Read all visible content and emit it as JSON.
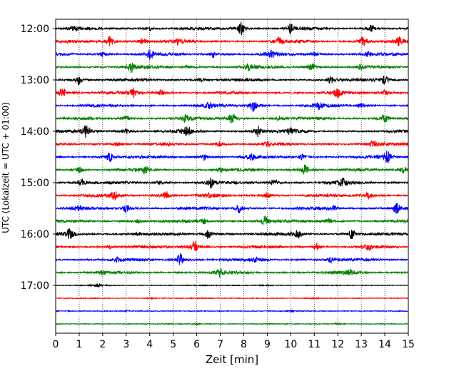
{
  "chart_data": {
    "type": "line",
    "title": "",
    "xlabel": "Zeit  [min]",
    "ylabel": "UTC (Lokalzeit = UTC + 01:00)",
    "xlim": [
      0,
      15
    ],
    "x_ticks": [
      "0",
      "1",
      "2",
      "3",
      "4",
      "5",
      "6",
      "7",
      "8",
      "9",
      "10",
      "11",
      "12",
      "13",
      "14",
      "15"
    ],
    "y_ticks": [
      "12:00",
      "13:00",
      "14:00",
      "15:00",
      "16:00",
      "17:00"
    ],
    "grid": "vertical dotted at each minute",
    "trace_interval_minutes": 15,
    "series_colors": [
      "#000000",
      "#ff0000",
      "#0000ff",
      "#008000"
    ],
    "traces": [
      {
        "start": "12:00",
        "color": "#000000",
        "bursts": [
          [
            7.9,
            1.0
          ],
          [
            10.0,
            0.7
          ],
          [
            13.4,
            0.6
          ],
          [
            0.8,
            0.3
          ],
          [
            4.0,
            0.3
          ]
        ]
      },
      {
        "start": "12:15",
        "color": "#ff0000",
        "bursts": [
          [
            2.3,
            0.8
          ],
          [
            3.7,
            0.5
          ],
          [
            9.5,
            0.6
          ],
          [
            13.1,
            0.8
          ],
          [
            14.6,
            0.6
          ],
          [
            5.2,
            0.4
          ]
        ]
      },
      {
        "start": "12:30",
        "color": "#0000ff",
        "bursts": [
          [
            4.0,
            0.7
          ],
          [
            6.7,
            0.5
          ],
          [
            9.2,
            0.6
          ],
          [
            11.0,
            0.4
          ],
          [
            13.3,
            0.4
          ],
          [
            2.0,
            0.4
          ]
        ]
      },
      {
        "start": "12:45",
        "color": "#008000",
        "bursts": [
          [
            3.2,
            0.8
          ],
          [
            10.9,
            0.8
          ],
          [
            8.2,
            0.5
          ],
          [
            5.6,
            0.3
          ],
          [
            13.0,
            0.4
          ]
        ]
      },
      {
        "start": "13:00",
        "color": "#000000",
        "bursts": [
          [
            1.0,
            0.8
          ],
          [
            11.7,
            0.6
          ],
          [
            14.0,
            0.7
          ],
          [
            6.2,
            0.3
          ]
        ]
      },
      {
        "start": "13:15",
        "color": "#ff0000",
        "bursts": [
          [
            0.3,
            0.9
          ],
          [
            3.3,
            0.7
          ],
          [
            4.5,
            0.5
          ],
          [
            12.0,
            0.7
          ],
          [
            14.0,
            0.4
          ]
        ]
      },
      {
        "start": "13:30",
        "color": "#0000ff",
        "bursts": [
          [
            8.4,
            0.9
          ],
          [
            6.5,
            0.4
          ],
          [
            11.2,
            0.5
          ],
          [
            13.0,
            0.4
          ]
        ]
      },
      {
        "start": "13:45",
        "color": "#008000",
        "bursts": [
          [
            7.5,
            0.9
          ],
          [
            14.0,
            0.7
          ],
          [
            3.0,
            0.5
          ],
          [
            5.5,
            0.5
          ],
          [
            9.5,
            0.4
          ]
        ]
      },
      {
        "start": "14:00",
        "color": "#000000",
        "bursts": [
          [
            1.3,
            1.0
          ],
          [
            8.6,
            0.9
          ],
          [
            5.6,
            0.7
          ],
          [
            10.0,
            0.5
          ],
          [
            3.0,
            0.4
          ]
        ]
      },
      {
        "start": "14:15",
        "color": "#ff0000",
        "bursts": [
          [
            13.5,
            0.6
          ],
          [
            7.0,
            0.4
          ],
          [
            2.6,
            0.3
          ],
          [
            9.0,
            0.3
          ]
        ]
      },
      {
        "start": "14:30",
        "color": "#0000ff",
        "bursts": [
          [
            14.1,
            0.9
          ],
          [
            2.3,
            0.7
          ],
          [
            6.3,
            0.6
          ],
          [
            8.3,
            0.5
          ],
          [
            10.5,
            0.4
          ]
        ]
      },
      {
        "start": "14:45",
        "color": "#008000",
        "bursts": [
          [
            10.6,
            0.8
          ],
          [
            14.8,
            0.6
          ],
          [
            3.8,
            0.6
          ],
          [
            1.0,
            0.4
          ],
          [
            7.0,
            0.3
          ]
        ]
      },
      {
        "start": "15:00",
        "color": "#000000",
        "bursts": [
          [
            6.6,
            0.8
          ],
          [
            1.1,
            0.7
          ],
          [
            12.2,
            0.6
          ],
          [
            9.3,
            0.6
          ],
          [
            4.4,
            0.3
          ]
        ]
      },
      {
        "start": "15:15",
        "color": "#ff0000",
        "bursts": [
          [
            2.5,
            0.7
          ],
          [
            4.7,
            0.7
          ],
          [
            9.0,
            0.5
          ],
          [
            13.3,
            0.6
          ],
          [
            6.5,
            0.3
          ]
        ]
      },
      {
        "start": "15:30",
        "color": "#0000ff",
        "bursts": [
          [
            14.5,
            0.9
          ],
          [
            7.8,
            0.7
          ],
          [
            3.0,
            0.6
          ],
          [
            11.8,
            0.4
          ],
          [
            1.0,
            0.3
          ]
        ]
      },
      {
        "start": "15:45",
        "color": "#008000",
        "bursts": [
          [
            8.9,
            0.8
          ],
          [
            6.3,
            0.4
          ],
          [
            11.6,
            0.4
          ],
          [
            3.5,
            0.3
          ]
        ]
      },
      {
        "start": "16:00",
        "color": "#000000",
        "bursts": [
          [
            0.6,
            0.9
          ],
          [
            6.5,
            0.8
          ],
          [
            12.6,
            0.8
          ],
          [
            10.3,
            0.6
          ],
          [
            3.5,
            0.3
          ]
        ]
      },
      {
        "start": "16:15",
        "color": "#ff0000",
        "bursts": [
          [
            5.9,
            0.9
          ],
          [
            11.1,
            0.5
          ],
          [
            13.3,
            0.4
          ],
          [
            2.3,
            0.3
          ]
        ]
      },
      {
        "start": "16:30",
        "color": "#0000ff",
        "bursts": [
          [
            5.3,
            1.0
          ],
          [
            11.7,
            0.5
          ],
          [
            8.5,
            0.3
          ],
          [
            2.6,
            0.3
          ]
        ]
      },
      {
        "start": "16:45",
        "color": "#008000",
        "bursts": [
          [
            7.0,
            0.6
          ],
          [
            12.5,
            0.4
          ],
          [
            2.0,
            0.3
          ]
        ]
      },
      {
        "start": "17:00",
        "color": "#000000",
        "bursts": [
          [
            1.8,
            0.6
          ],
          [
            9.0,
            0.2
          ]
        ]
      },
      {
        "start": "17:15",
        "color": "#ff0000",
        "bursts": [
          [
            4.0,
            0.2
          ],
          [
            11.0,
            0.2
          ]
        ]
      },
      {
        "start": "17:30",
        "color": "#0000ff",
        "bursts": [
          [
            3.0,
            0.2
          ],
          [
            10.0,
            0.2
          ]
        ]
      },
      {
        "start": "17:45",
        "color": "#008000",
        "bursts": [
          [
            6.0,
            0.2
          ],
          [
            12.0,
            0.2
          ]
        ]
      }
    ]
  }
}
